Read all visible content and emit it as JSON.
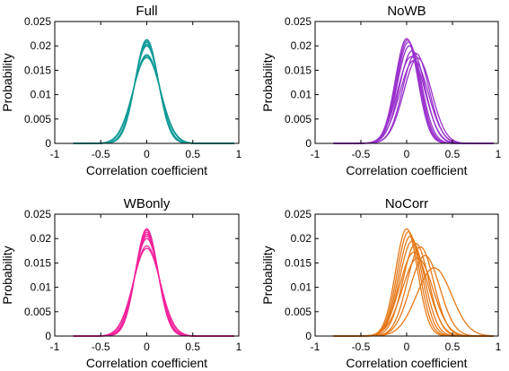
{
  "chart_data": [
    {
      "type": "line",
      "title": "Full",
      "xlabel": "Correlation coefficient",
      "ylabel": "Probability",
      "xlim": [
        -1,
        1
      ],
      "ylim": [
        0,
        0.025
      ],
      "xticks": [
        "-1",
        "-0.5",
        "0",
        "0.5",
        "1"
      ],
      "yticks": [
        "0",
        "0.005",
        "0.01",
        "0.015",
        "0.02",
        "0.025"
      ],
      "color": "#0f9a97",
      "series": [
        {
          "mean": 0.0,
          "peak": 0.0213
        },
        {
          "mean": 0.0,
          "peak": 0.021
        },
        {
          "mean": 0.0,
          "peak": 0.0207
        },
        {
          "mean": 0.0,
          "peak": 0.0203
        },
        {
          "mean": 0.0,
          "peak": 0.02
        },
        {
          "mean": 0.0,
          "peak": 0.0182
        },
        {
          "mean": 0.0,
          "peak": 0.0179
        },
        {
          "mean": 0.0,
          "peak": 0.0176
        }
      ]
    },
    {
      "type": "line",
      "title": "NoWB",
      "xlabel": "Correlation coefficient",
      "ylabel": "Probability",
      "xlim": [
        -1,
        1
      ],
      "ylim": [
        0,
        0.025
      ],
      "xticks": [
        "-1",
        "-0.5",
        "0",
        "0.5",
        "1"
      ],
      "yticks": [
        "0",
        "0.005",
        "0.01",
        "0.015",
        "0.02",
        "0.025"
      ],
      "color": "#9a32cd",
      "series": [
        {
          "mean": 0.0,
          "peak": 0.0215
        },
        {
          "mean": 0.01,
          "peak": 0.0212
        },
        {
          "mean": 0.02,
          "peak": 0.0208
        },
        {
          "mean": 0.03,
          "peak": 0.02
        },
        {
          "mean": 0.06,
          "peak": 0.019
        },
        {
          "mean": 0.1,
          "peak": 0.0185
        },
        {
          "mean": 0.05,
          "peak": 0.0178
        },
        {
          "mean": 0.12,
          "peak": 0.0175
        },
        {
          "mean": 0.08,
          "peak": 0.017
        }
      ]
    },
    {
      "type": "line",
      "title": "WBonly",
      "xlabel": "Correlation coefficient",
      "ylabel": "Probability",
      "xlim": [
        -1,
        1
      ],
      "ylim": [
        0,
        0.025
      ],
      "xticks": [
        "-1",
        "-0.5",
        "0",
        "0.5",
        "1"
      ],
      "yticks": [
        "0",
        "0.005",
        "0.01",
        "0.015",
        "0.02",
        "0.025"
      ],
      "color": "#f0239b",
      "series": [
        {
          "mean": 0.0,
          "peak": 0.022
        },
        {
          "mean": 0.0,
          "peak": 0.0217
        },
        {
          "mean": 0.0,
          "peak": 0.0213
        },
        {
          "mean": 0.0,
          "peak": 0.0209
        },
        {
          "mean": 0.0,
          "peak": 0.0205
        },
        {
          "mean": 0.0,
          "peak": 0.02
        },
        {
          "mean": 0.0,
          "peak": 0.0185
        },
        {
          "mean": 0.0,
          "peak": 0.018
        }
      ]
    },
    {
      "type": "line",
      "title": "NoCorr",
      "xlabel": "Correlation coefficient",
      "ylabel": "Probability",
      "xlim": [
        -1,
        1
      ],
      "ylim": [
        0,
        0.025
      ],
      "xticks": [
        "-1",
        "-0.5",
        "0",
        "0.5",
        "1"
      ],
      "yticks": [
        "0",
        "0.005",
        "0.01",
        "0.015",
        "0.02",
        "0.025"
      ],
      "color": "#e67817",
      "series": [
        {
          "mean": 0.0,
          "peak": 0.022
        },
        {
          "mean": 0.02,
          "peak": 0.0214
        },
        {
          "mean": 0.04,
          "peak": 0.0205
        },
        {
          "mean": 0.06,
          "peak": 0.0195
        },
        {
          "mean": 0.1,
          "peak": 0.019
        },
        {
          "mean": 0.15,
          "peak": 0.0183
        },
        {
          "mean": 0.08,
          "peak": 0.0172
        },
        {
          "mean": 0.2,
          "peak": 0.0165
        },
        {
          "mean": 0.12,
          "peak": 0.016
        },
        {
          "mean": 0.3,
          "peak": 0.014
        }
      ]
    }
  ]
}
